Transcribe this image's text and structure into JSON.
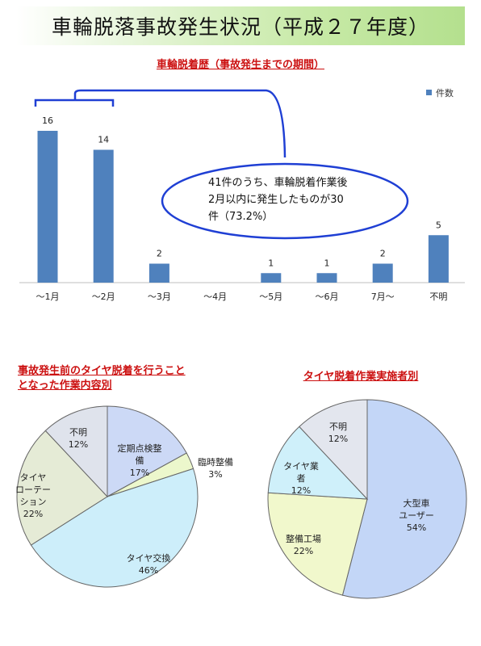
{
  "banner": {
    "title": "車輪脱落事故発生状況（平成２７年度）"
  },
  "bar_section": {
    "title": "車輪脱着歴（事故発生までの期間）"
  },
  "callout": {
    "line1": "41件のうち、車輪脱着作業後",
    "line2": "2月以内に発生したものが30",
    "line3": "件（73.2%）"
  },
  "pie1_section": {
    "title_line1": "事故発生前のタイヤ脱着を行うこと",
    "title_line2": "となった作業内容別"
  },
  "pie2_section": {
    "title": "タイヤ脱着作業実施者別"
  },
  "colors": {
    "bar": "#4f81bd",
    "title_red": "#cc1111",
    "callout_border": "#1f3fd4"
  },
  "chart_data": [
    {
      "type": "bar",
      "categories": [
        "～1月",
        "～2月",
        "～3月",
        "～4月",
        "～5月",
        "～6月",
        "7月～",
        "不明"
      ],
      "series": [
        {
          "name": "件数",
          "values": [
            16,
            14,
            2,
            0,
            1,
            1,
            2,
            5
          ]
        }
      ],
      "data_labels": [
        "16",
        "14",
        "2",
        "",
        "1",
        "1",
        "2",
        "5"
      ],
      "ylim": [
        0,
        16
      ],
      "legend": "top-right",
      "grid": false
    },
    {
      "type": "pie",
      "slices": [
        {
          "label": "定期点検整備",
          "value": 17,
          "display": [
            "定期点検整",
            "備",
            "17%"
          ],
          "color": "#ccd9f6"
        },
        {
          "label": "臨時整備",
          "value": 3,
          "display": [
            "臨時整備",
            "3%"
          ],
          "color": "#ecf7cc"
        },
        {
          "label": "タイヤ交換",
          "value": 46,
          "display": [
            "タイヤ交換",
            "46%"
          ],
          "color": "#cdeefa"
        },
        {
          "label": "タイヤローテーション",
          "value": 22,
          "display": [
            "タイヤ",
            "ローテー",
            "ション",
            "22%"
          ],
          "color": "#e5ebd6"
        },
        {
          "label": "不明",
          "value": 12,
          "display": [
            "不明",
            "12%"
          ],
          "color": "#dfe3ec"
        }
      ]
    },
    {
      "type": "pie",
      "slices": [
        {
          "label": "大型車ユーザー",
          "value": 54,
          "display": [
            "大型車",
            "ユーザー",
            "54%"
          ],
          "color": "#c3d6f7"
        },
        {
          "label": "整備工場",
          "value": 22,
          "display": [
            "整備工場",
            "22%"
          ],
          "color": "#f1f8cc"
        },
        {
          "label": "タイヤ業者",
          "value": 12,
          "display": [
            "タイヤ業",
            "者",
            "12%"
          ],
          "color": "#cff0fa"
        },
        {
          "label": "不明",
          "value": 12,
          "display": [
            "不明",
            "12%"
          ],
          "color": "#e3e6ee"
        }
      ]
    }
  ]
}
